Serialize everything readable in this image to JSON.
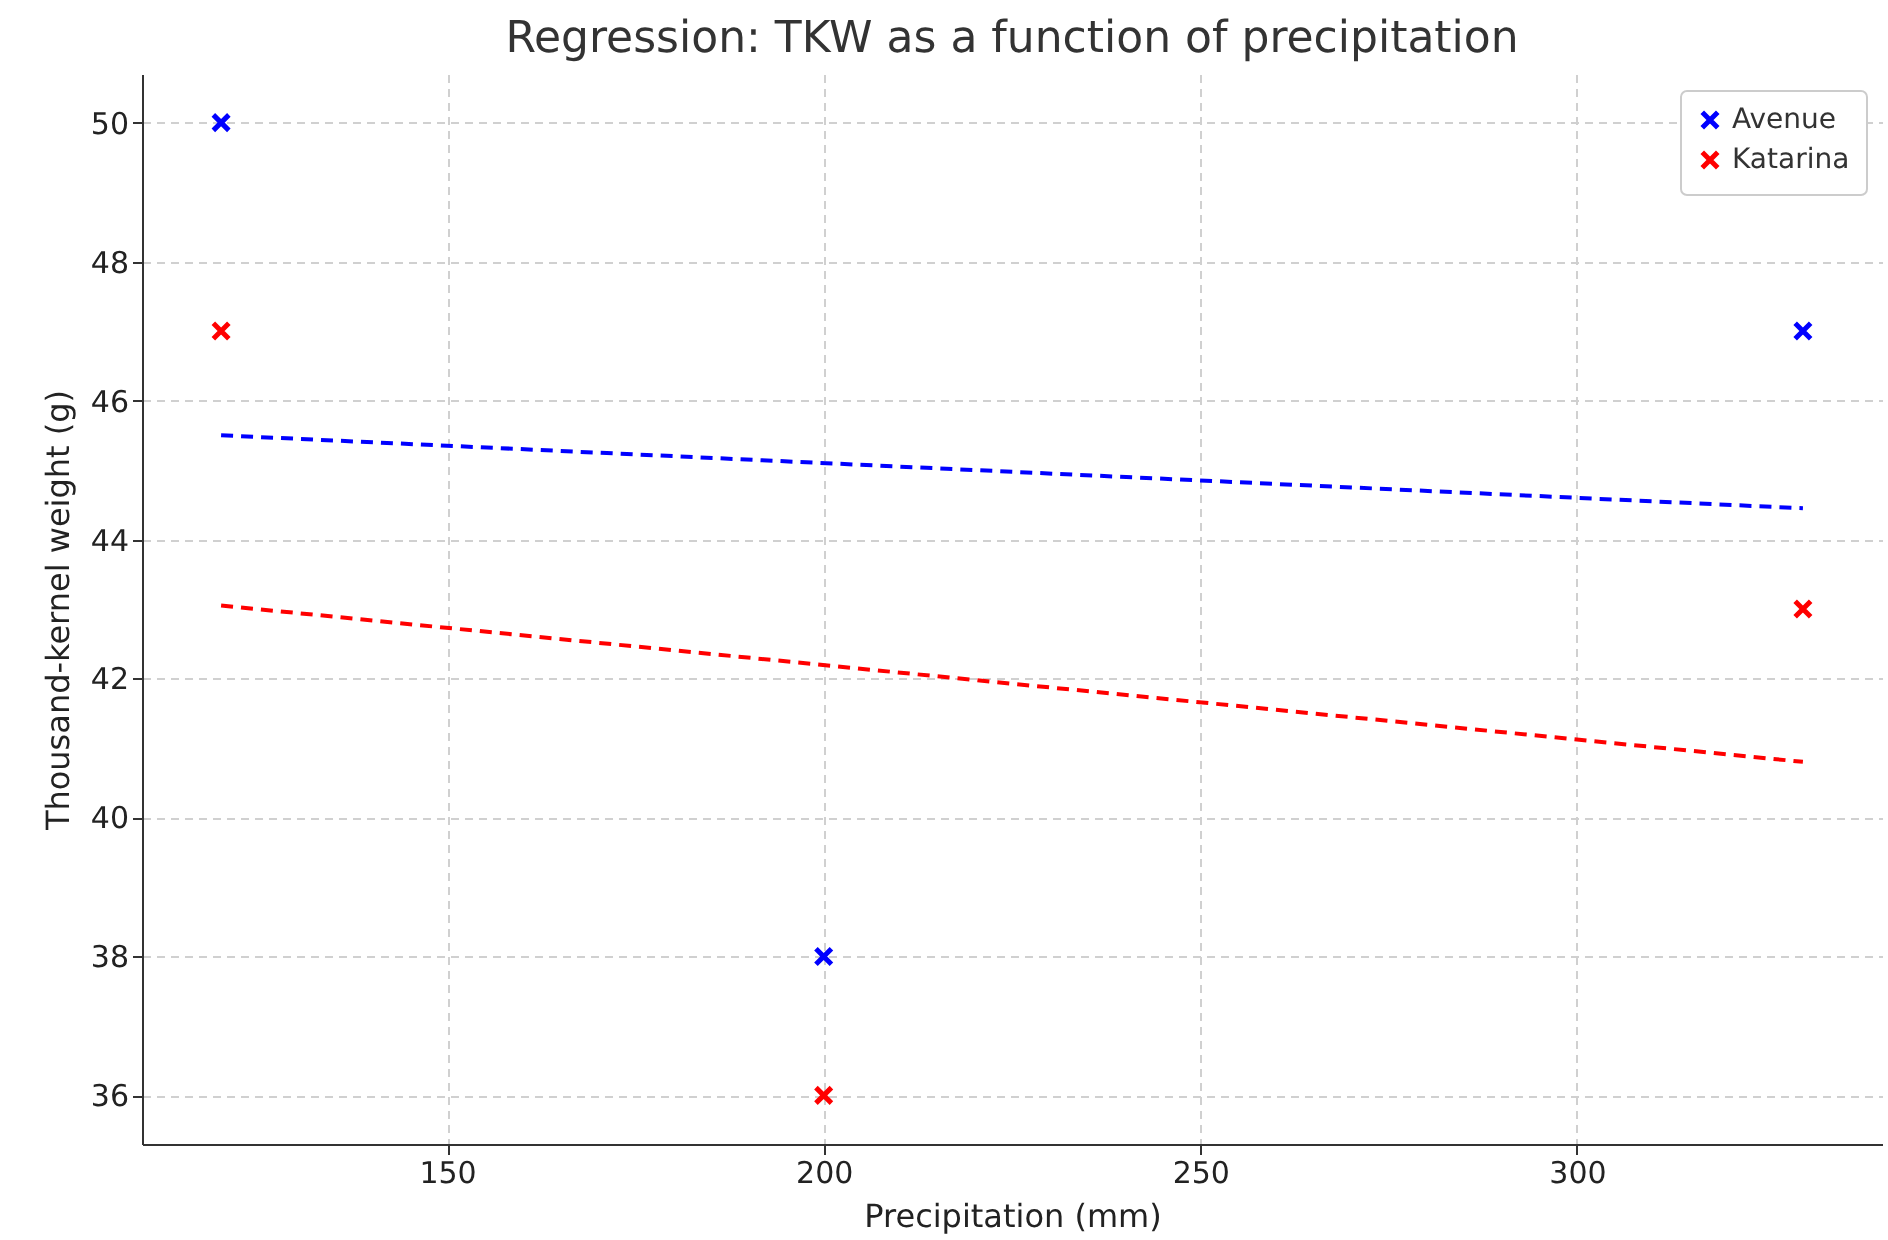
{
  "chart_data": {
    "type": "scatter",
    "title": "Regression: TKW as a function of precipitation",
    "xlabel": "Precipitation (mm)",
    "ylabel": "Thousand-kernel weight (g)",
    "xlim": [
      109.5,
      340.5
    ],
    "xticks": [
      150,
      200,
      250,
      300
    ],
    "ylim": [
      35.3,
      50.7
    ],
    "yticks": [
      36,
      38,
      40,
      42,
      44,
      46,
      48,
      50
    ],
    "grid": true,
    "legend": "top right",
    "series": [
      {
        "name": "Avenue",
        "marker": "cross",
        "color": "#0000ff",
        "x": [
          120,
          200,
          330
        ],
        "values": [
          50,
          38,
          47
        ]
      },
      {
        "name": "Katarina",
        "marker": "cross",
        "color": "#ff0000",
        "x": [
          120,
          200,
          330
        ],
        "values": [
          47,
          36,
          43
        ]
      },
      {
        "type": "line",
        "line_style": "dashed",
        "color": "#0000ff",
        "x": [
          120,
          330
        ],
        "values": [
          45.5,
          44.45
        ]
      },
      {
        "type": "line",
        "line_style": "dashed",
        "color": "#ff0000",
        "x": [
          120,
          330
        ],
        "values": [
          43.05,
          40.8
        ]
      }
    ]
  }
}
